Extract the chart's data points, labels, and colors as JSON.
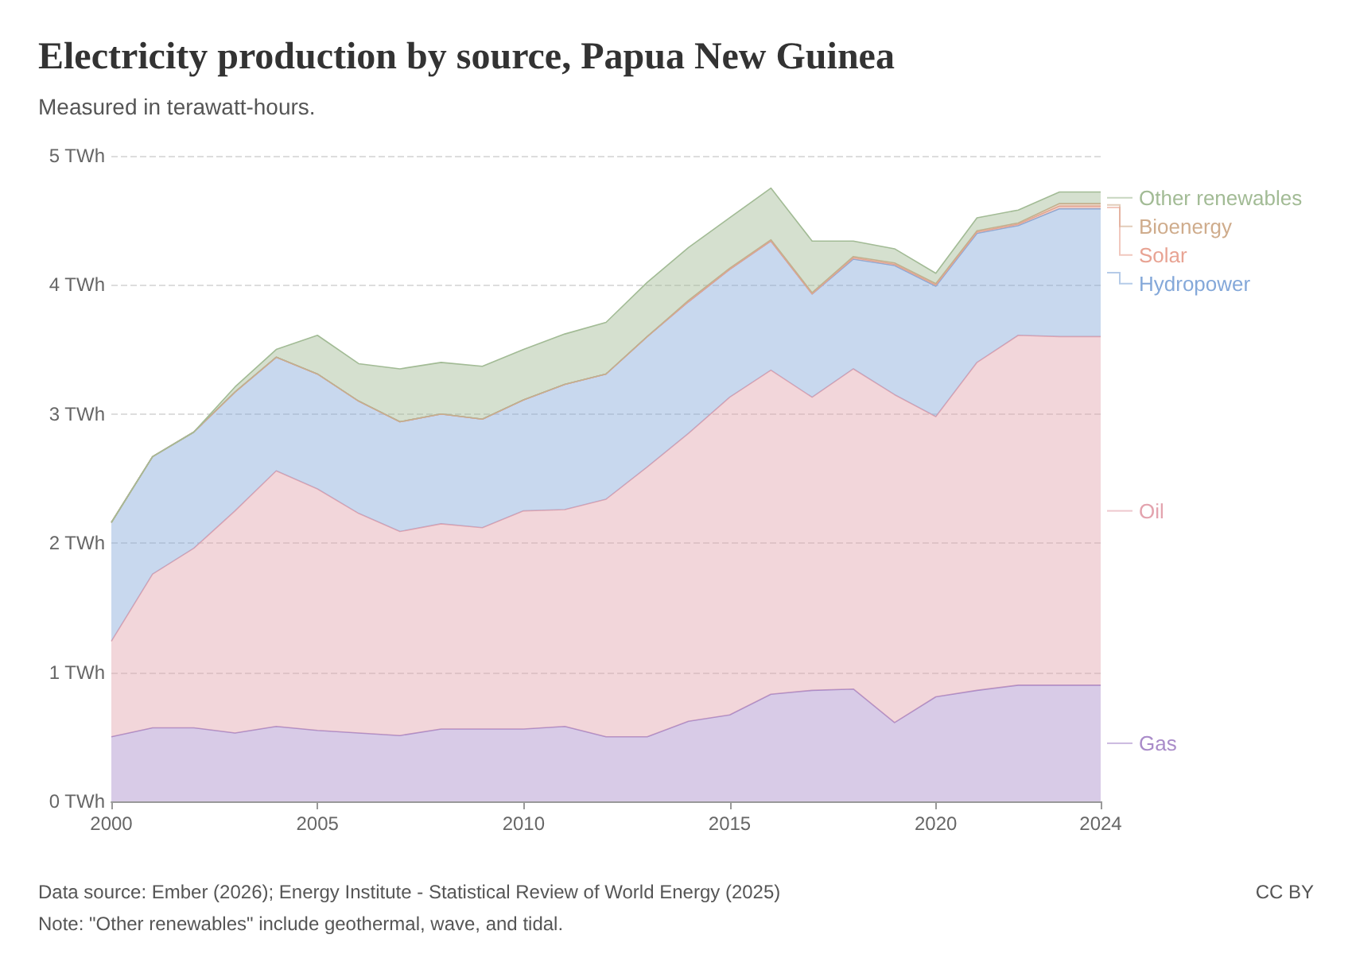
{
  "chart_data": {
    "type": "area",
    "stacked": true,
    "title": "Electricity production by source, Papua New Guinea",
    "subtitle": "Measured in terawatt-hours.",
    "x": [
      2000,
      2001,
      2002,
      2003,
      2004,
      2005,
      2006,
      2007,
      2008,
      2009,
      2010,
      2011,
      2012,
      2013,
      2014,
      2015,
      2016,
      2017,
      2018,
      2019,
      2020,
      2021,
      2022,
      2023,
      2024
    ],
    "series": [
      {
        "name": "Gas",
        "color": "#a98bc9",
        "values": [
          0.5,
          0.57,
          0.57,
          0.53,
          0.58,
          0.55,
          0.53,
          0.51,
          0.56,
          0.56,
          0.56,
          0.58,
          0.5,
          0.5,
          0.62,
          0.67,
          0.83,
          0.86,
          0.87,
          0.61,
          0.81,
          0.86,
          0.9,
          0.9,
          0.9
        ]
      },
      {
        "name": "Oil",
        "color": "#e3a3ae",
        "values": [
          0.74,
          1.19,
          1.39,
          1.72,
          1.98,
          1.87,
          1.7,
          1.58,
          1.59,
          1.56,
          1.69,
          1.68,
          1.84,
          2.09,
          2.23,
          2.46,
          2.51,
          2.27,
          2.48,
          2.54,
          2.17,
          2.54,
          2.71,
          2.7,
          2.7
        ]
      },
      {
        "name": "Hydropower",
        "color": "#84a8d9",
        "values": [
          0.92,
          0.91,
          0.9,
          0.92,
          0.88,
          0.89,
          0.87,
          0.85,
          0.85,
          0.84,
          0.86,
          0.97,
          0.97,
          1.01,
          1.02,
          0.99,
          1.0,
          0.8,
          0.85,
          1.0,
          1.01,
          1.0,
          0.85,
          0.99,
          0.99
        ]
      },
      {
        "name": "Solar",
        "color": "#e8a393",
        "values": [
          0,
          0,
          0,
          0,
          0,
          0,
          0,
          0,
          0,
          0,
          0,
          0,
          0,
          0,
          0,
          0,
          0,
          0,
          0.01,
          0.01,
          0.01,
          0.01,
          0.01,
          0.02,
          0.02
        ]
      },
      {
        "name": "Bioenergy",
        "color": "#cfac8c",
        "values": [
          0,
          0,
          0,
          0,
          0,
          0,
          0,
          0,
          0,
          0,
          0,
          0,
          0,
          0,
          0.01,
          0.01,
          0.01,
          0.01,
          0.01,
          0.01,
          0.01,
          0.01,
          0.01,
          0.02,
          0.02
        ]
      },
      {
        "name": "Other renewables",
        "color": "#a2bb95",
        "values": [
          0,
          0,
          0,
          0.04,
          0.06,
          0.3,
          0.29,
          0.41,
          0.4,
          0.41,
          0.39,
          0.39,
          0.4,
          0.42,
          0.41,
          0.39,
          0.4,
          0.4,
          0.12,
          0.11,
          0.08,
          0.1,
          0.1,
          0.09,
          0.09
        ]
      }
    ],
    "xlim": [
      2000,
      2024
    ],
    "xticks": [
      2000,
      2005,
      2010,
      2015,
      2020,
      2024
    ],
    "ylim": [
      0,
      5
    ],
    "yticks": [
      {
        "value": 0,
        "label": "0 TWh"
      },
      {
        "value": 1,
        "label": "1 TWh"
      },
      {
        "value": 2,
        "label": "2 TWh"
      },
      {
        "value": 3,
        "label": "3 TWh"
      },
      {
        "value": 4,
        "label": "4 TWh"
      },
      {
        "value": 5,
        "label": "5 TWh"
      }
    ],
    "grid": "y",
    "legend": "right",
    "annotations": [
      "Data source: Ember (2026); Energy Institute - Statistical Review of World Energy (2025)",
      "Note: \"Other renewables\" include geothermal, wave, and tidal.",
      "CC BY"
    ]
  }
}
